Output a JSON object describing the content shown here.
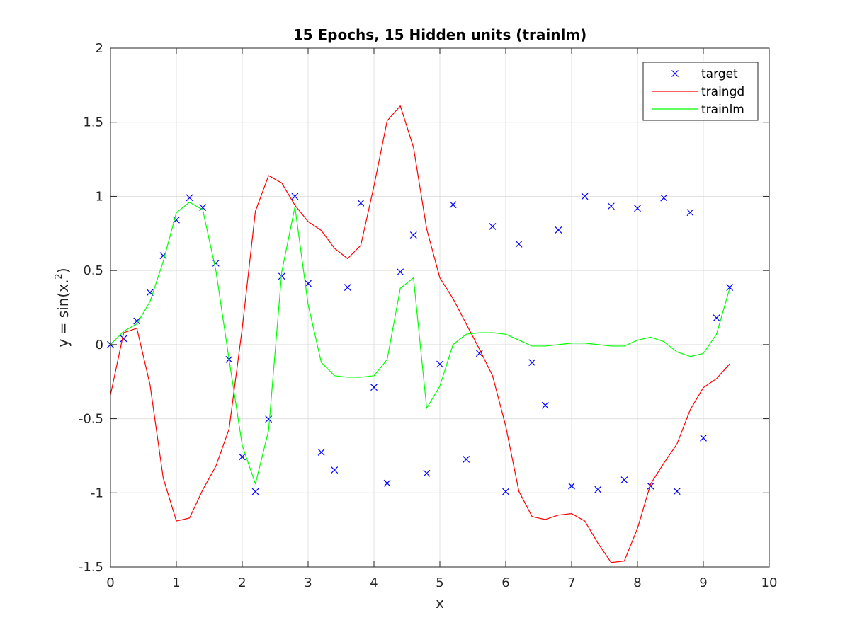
{
  "chart_data": {
    "type": "line",
    "title": "15 Epochs, 15 Hidden units (trainlm)",
    "xlabel": "x",
    "ylabel": "y = sin(x.^2)",
    "xlim": [
      0,
      10
    ],
    "ylim": [
      -1.5,
      2
    ],
    "xticks": [
      0,
      1,
      2,
      3,
      4,
      5,
      6,
      7,
      8,
      9,
      10
    ],
    "xtick_labels": [
      "0",
      "1",
      "2",
      "3",
      "4",
      "5",
      "6",
      "7",
      "8",
      "9",
      "10"
    ],
    "yticks": [
      -1.5,
      -1,
      -0.5,
      0,
      0.5,
      1,
      1.5,
      2
    ],
    "ytick_labels": [
      "-1.5",
      "-1",
      "-0.5",
      "0",
      "0.5",
      "1",
      "1.5",
      "2"
    ],
    "grid": true,
    "legend_position": "top-right",
    "x": [
      0,
      0.2,
      0.4,
      0.6,
      0.8,
      1.0,
      1.2,
      1.4,
      1.6,
      1.8,
      2.0,
      2.2,
      2.4,
      2.6,
      2.8,
      3.0,
      3.2,
      3.4,
      3.6,
      3.8,
      4.0,
      4.2,
      4.4,
      4.6,
      4.8,
      5.0,
      5.2,
      5.4,
      5.6,
      5.8,
      6.0,
      6.2,
      6.4,
      6.6,
      6.8,
      7.0,
      7.2,
      7.4,
      7.6,
      7.8,
      8.0,
      8.2,
      8.4,
      8.6,
      8.8,
      9.0,
      9.2,
      9.4
    ],
    "series": [
      {
        "name": "target",
        "style": "marker-x",
        "color": "#0000ff",
        "values": [
          0.0,
          0.04,
          0.159,
          0.352,
          0.6,
          0.841,
          0.991,
          0.925,
          0.549,
          -0.1,
          -0.757,
          -0.992,
          -0.503,
          0.461,
          1.0,
          0.412,
          -0.726,
          -0.846,
          0.386,
          0.955,
          -0.288,
          -0.935,
          0.49,
          0.739,
          -0.868,
          -0.132,
          0.944,
          -0.774,
          -0.059,
          0.797,
          -0.992,
          0.678,
          -0.121,
          -0.41,
          0.773,
          -0.954,
          1.0,
          -0.978,
          0.934,
          -0.913,
          0.92,
          -0.955,
          0.99,
          -0.99,
          0.891,
          -0.63,
          0.18,
          0.386
        ]
      },
      {
        "name": "traingd",
        "style": "line",
        "color": "#ff0000",
        "values": [
          -0.34,
          0.08,
          0.11,
          -0.27,
          -0.9,
          -1.19,
          -1.17,
          -0.98,
          -0.82,
          -0.57,
          0.11,
          0.9,
          1.14,
          1.09,
          0.94,
          0.83,
          0.77,
          0.65,
          0.58,
          0.67,
          1.07,
          1.51,
          1.61,
          1.33,
          0.78,
          0.45,
          0.31,
          0.14,
          -0.03,
          -0.21,
          -0.55,
          -0.99,
          -1.16,
          -1.18,
          -1.15,
          -1.14,
          -1.19,
          -1.34,
          -1.47,
          -1.46,
          -1.24,
          -0.94,
          -0.8,
          -0.67,
          -0.44,
          -0.29,
          -0.23,
          -0.13
        ]
      },
      {
        "name": "trainlm",
        "style": "line",
        "color": "#00ff00",
        "values": [
          0.0,
          0.09,
          0.14,
          0.29,
          0.56,
          0.89,
          0.96,
          0.91,
          0.5,
          -0.1,
          -0.68,
          -0.94,
          -0.58,
          0.49,
          0.93,
          0.27,
          -0.12,
          -0.21,
          -0.22,
          -0.22,
          -0.21,
          -0.1,
          0.38,
          0.45,
          -0.43,
          -0.28,
          0.0,
          0.07,
          0.08,
          0.08,
          0.07,
          0.03,
          -0.01,
          -0.01,
          0.0,
          0.01,
          0.01,
          0.0,
          -0.01,
          -0.01,
          0.03,
          0.05,
          0.02,
          -0.05,
          -0.08,
          -0.06,
          0.07,
          0.38
        ]
      }
    ]
  },
  "colors": {
    "background": "#ffffff",
    "axes": "#262626",
    "grid": "#e0e0e0"
  }
}
